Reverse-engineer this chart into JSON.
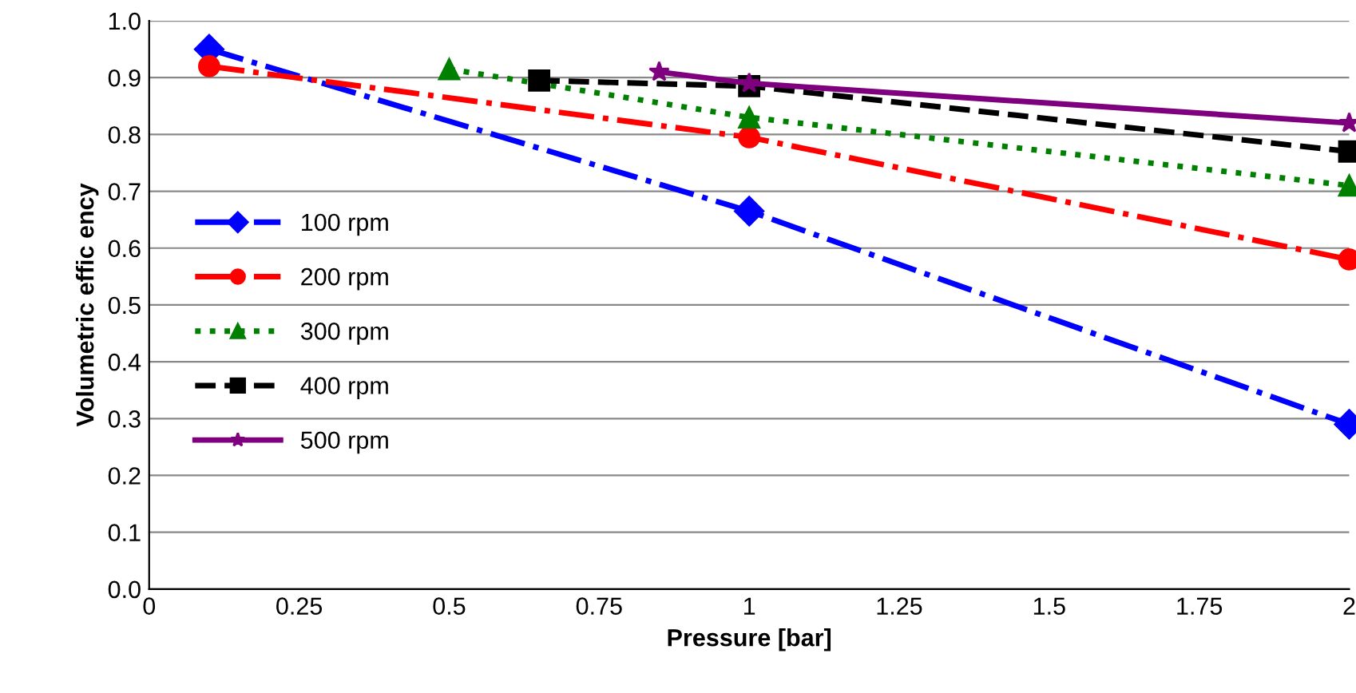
{
  "chart_data": {
    "type": "line",
    "xlabel": "Pressure [bar]",
    "ylabel": "Volumetric effic ency",
    "xlim": [
      0,
      2
    ],
    "ylim": [
      0,
      1
    ],
    "xticks": [
      0,
      0.25,
      0.5,
      0.75,
      1,
      1.25,
      1.5,
      1.75,
      2
    ],
    "yticks": [
      {
        "value": 0,
        "label": "0.0"
      },
      {
        "value": 0.1,
        "label": "0.1"
      },
      {
        "value": 0.2,
        "label": "0.2"
      },
      {
        "value": 0.3,
        "label": "0.3"
      },
      {
        "value": 0.4,
        "label": "0.4"
      },
      {
        "value": 0.5,
        "label": "0.5"
      },
      {
        "value": 0.6,
        "label": "0.6"
      },
      {
        "value": 0.7,
        "label": "0.7"
      },
      {
        "value": 0.8,
        "label": "0.8"
      },
      {
        "value": 0.9,
        "label": "0.9"
      },
      {
        "value": 1,
        "label": "1.0"
      }
    ],
    "grid": "y",
    "legend": "left",
    "series": [
      {
        "name": "100 rpm",
        "color": "#0000ff",
        "marker": "diamond",
        "line_style": "dashdot",
        "x": [
          0.1,
          1,
          2
        ],
        "values": [
          0.95,
          0.665,
          0.29
        ]
      },
      {
        "name": "200 rpm",
        "color": "#ff0000",
        "marker": "circle",
        "line_style": "dashdot",
        "x": [
          0.1,
          1,
          2
        ],
        "values": [
          0.92,
          0.795,
          0.58
        ]
      },
      {
        "name": "300 rpm",
        "color": "#008000",
        "marker": "triangle",
        "line_style": "dotted",
        "x": [
          0.5,
          1,
          2
        ],
        "values": [
          0.915,
          0.83,
          0.71
        ]
      },
      {
        "name": "400 rpm",
        "color": "#000000",
        "marker": "square",
        "line_style": "dashed",
        "x": [
          0.65,
          1,
          2
        ],
        "values": [
          0.895,
          0.885,
          0.77
        ]
      },
      {
        "name": "500 rpm",
        "color": "#7f007f",
        "marker": "star",
        "line_style": "solid",
        "x": [
          0.85,
          1,
          2
        ],
        "values": [
          0.91,
          0.89,
          0.82
        ]
      }
    ]
  }
}
